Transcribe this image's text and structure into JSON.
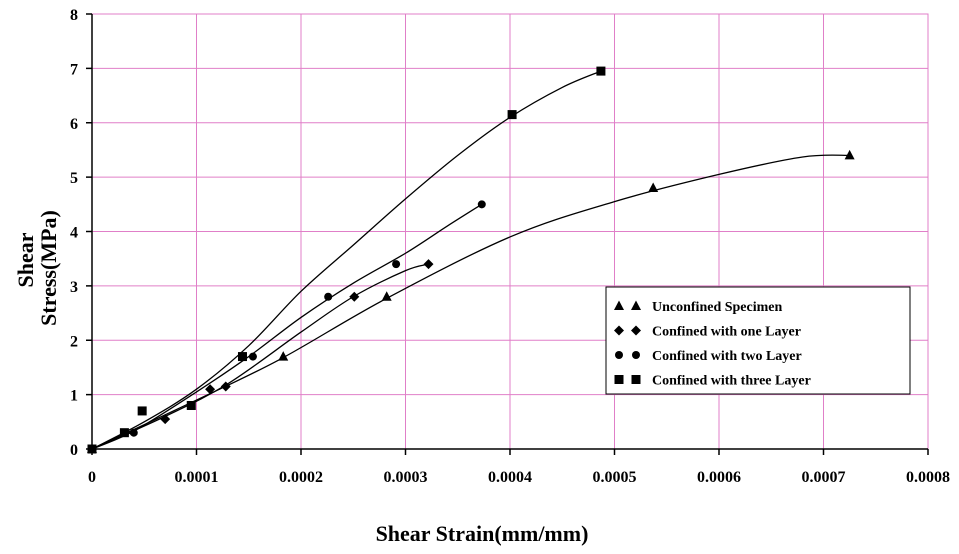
{
  "chart_data": {
    "type": "scatter",
    "xlabel": "Shear Strain(mm/mm)",
    "ylabel_lines": [
      "Shear",
      "Stress(MPa)"
    ],
    "xlim": [
      0,
      0.0008
    ],
    "ylim": [
      0,
      8
    ],
    "x_ticks": [
      0,
      0.0001,
      0.0002,
      0.0003,
      0.0004,
      0.0005,
      0.0006,
      0.0007,
      0.0008
    ],
    "x_tick_labels": [
      "0",
      "0.0001",
      "0.0002",
      "0.0003",
      "0.0004",
      "0.0005",
      "0.0006",
      "0.0007",
      "0.0008"
    ],
    "y_ticks": [
      0,
      1,
      2,
      3,
      4,
      5,
      6,
      7,
      8
    ],
    "y_tick_labels": [
      "0",
      "1",
      "2",
      "3",
      "4",
      "5",
      "6",
      "7",
      "8"
    ],
    "grid": true,
    "grid_color": "#e07fc8",
    "legend_position": "bottom-right",
    "series": [
      {
        "name": "Unconfined Specimen",
        "marker": "triangle",
        "points": [
          [
            0,
            0
          ],
          [
            0.000183,
            1.7
          ],
          [
            0.000282,
            2.8
          ],
          [
            0.000537,
            4.8
          ],
          [
            0.000725,
            5.4
          ]
        ],
        "curve": [
          [
            0,
            0
          ],
          [
            0.0001,
            0.9
          ],
          [
            0.00018,
            1.65
          ],
          [
            0.00028,
            2.75
          ],
          [
            0.0004,
            3.9
          ],
          [
            0.0005,
            4.55
          ],
          [
            0.0006,
            5.05
          ],
          [
            0.00068,
            5.37
          ],
          [
            0.000725,
            5.4
          ]
        ]
      },
      {
        "name": "Confined with one Layer",
        "marker": "diamond",
        "points": [
          [
            0,
            0
          ],
          [
            7e-05,
            0.55
          ],
          [
            0.000113,
            1.1
          ],
          [
            0.000128,
            1.15
          ],
          [
            0.000251,
            2.8
          ],
          [
            0.000322,
            3.4
          ]
        ],
        "curve": [
          [
            0,
            0
          ],
          [
            7e-05,
            0.6
          ],
          [
            0.00013,
            1.2
          ],
          [
            0.0002,
            2.15
          ],
          [
            0.00025,
            2.8
          ],
          [
            0.0003,
            3.28
          ],
          [
            0.000322,
            3.4
          ]
        ]
      },
      {
        "name": "Confined with two Layer",
        "marker": "circle",
        "points": [
          [
            0,
            0
          ],
          [
            4e-05,
            0.3
          ],
          [
            0.000154,
            1.7
          ],
          [
            0.000226,
            2.8
          ],
          [
            0.000291,
            3.4
          ],
          [
            0.000373,
            4.5
          ]
        ],
        "curve": [
          [
            0,
            0
          ],
          [
            4e-05,
            0.33
          ],
          [
            0.0001,
            1.05
          ],
          [
            0.00015,
            1.7
          ],
          [
            0.0002,
            2.42
          ],
          [
            0.00025,
            3.05
          ],
          [
            0.0003,
            3.6
          ],
          [
            0.00034,
            4.1
          ],
          [
            0.000373,
            4.5
          ]
        ]
      },
      {
        "name": "Confined with three Layer",
        "marker": "square",
        "points": [
          [
            0,
            0
          ],
          [
            3.1e-05,
            0.3
          ],
          [
            4.8e-05,
            0.7
          ],
          [
            9.5e-05,
            0.8
          ],
          [
            0.000144,
            1.7
          ],
          [
            0.000402,
            6.15
          ],
          [
            0.000487,
            6.95
          ]
        ],
        "curve": [
          [
            0,
            0
          ],
          [
            5e-05,
            0.5
          ],
          [
            0.0001,
            1.1
          ],
          [
            0.00015,
            1.9
          ],
          [
            0.0002,
            2.9
          ],
          [
            0.00025,
            3.75
          ],
          [
            0.0003,
            4.6
          ],
          [
            0.00035,
            5.4
          ],
          [
            0.0004,
            6.1
          ],
          [
            0.00045,
            6.65
          ],
          [
            0.000487,
            6.95
          ]
        ]
      }
    ]
  }
}
